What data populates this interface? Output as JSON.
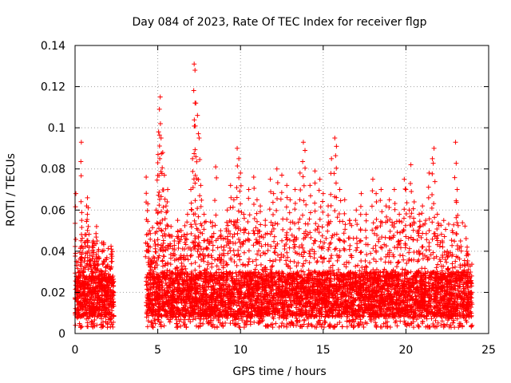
{
  "chart_data": {
    "type": "scatter",
    "title": "Day 084 of 2023, Rate Of TEC Index for receiver flgp",
    "xlabel": "GPS time / hours",
    "ylabel": "ROTI / TECUs",
    "xlim": [
      0,
      25
    ],
    "ylim": [
      0,
      0.14
    ],
    "x_ticks": [
      0,
      5,
      10,
      15,
      20,
      25
    ],
    "x_tick_labels": [
      "0",
      "5",
      "10",
      "15",
      "20",
      "25"
    ],
    "y_ticks": [
      0,
      0.02,
      0.04,
      0.06,
      0.08,
      0.1,
      0.12,
      0.14
    ],
    "y_tick_labels": [
      "0",
      "0.02",
      "0.04",
      "0.06",
      "0.08",
      "0.1",
      "0.12",
      "0.14"
    ],
    "grid": true,
    "marker": "+",
    "series": [
      {
        "name": "ROTI",
        "color": "#ff0000",
        "points": [
          [
            0.05,
            0.068
          ],
          [
            0.15,
            0.012
          ],
          [
            0.2,
            0.025
          ],
          [
            0.3,
            0.018
          ],
          [
            0.35,
            0.042
          ],
          [
            0.4,
            0.055
          ],
          [
            0.38,
            0.093
          ],
          [
            0.5,
            0.03
          ],
          [
            0.6,
            0.048
          ],
          [
            0.7,
            0.062
          ],
          [
            0.75,
            0.066
          ],
          [
            0.8,
            0.052
          ],
          [
            0.9,
            0.038
          ],
          [
            1.0,
            0.028
          ],
          [
            1.1,
            0.045
          ],
          [
            1.2,
            0.035
          ],
          [
            1.3,
            0.052
          ],
          [
            1.4,
            0.04
          ],
          [
            1.5,
            0.022
          ],
          [
            1.6,
            0.03
          ],
          [
            1.7,
            0.044
          ],
          [
            1.8,
            0.026
          ],
          [
            1.9,
            0.036
          ],
          [
            2.0,
            0.018
          ],
          [
            2.1,
            0.025
          ],
          [
            2.2,
            0.041
          ],
          [
            2.3,
            0.015
          ],
          [
            4.3,
            0.076
          ],
          [
            4.4,
            0.063
          ],
          [
            4.5,
            0.05
          ],
          [
            4.6,
            0.035
          ],
          [
            4.8,
            0.045
          ],
          [
            4.9,
            0.06
          ],
          [
            5.0,
            0.083
          ],
          [
            5.05,
            0.098
          ],
          [
            5.1,
            0.109
          ],
          [
            5.15,
            0.115
          ],
          [
            5.2,
            0.095
          ],
          [
            5.3,
            0.088
          ],
          [
            5.4,
            0.077
          ],
          [
            5.5,
            0.062
          ],
          [
            5.6,
            0.07
          ],
          [
            5.8,
            0.052
          ],
          [
            6.0,
            0.045
          ],
          [
            6.2,
            0.055
          ],
          [
            6.4,
            0.038
          ],
          [
            6.6,
            0.048
          ],
          [
            6.8,
            0.058
          ],
          [
            7.0,
            0.07
          ],
          [
            7.1,
            0.085
          ],
          [
            7.2,
            0.131
          ],
          [
            7.25,
            0.128
          ],
          [
            7.3,
            0.112
          ],
          [
            7.4,
            0.106
          ],
          [
            7.5,
            0.095
          ],
          [
            7.6,
            0.072
          ],
          [
            7.8,
            0.058
          ],
          [
            8.0,
            0.045
          ],
          [
            8.3,
            0.052
          ],
          [
            8.5,
            0.081
          ],
          [
            8.8,
            0.05
          ],
          [
            9.0,
            0.042
          ],
          [
            9.2,
            0.06
          ],
          [
            9.4,
            0.072
          ],
          [
            9.6,
            0.065
          ],
          [
            9.8,
            0.09
          ],
          [
            9.9,
            0.085
          ],
          [
            10.0,
            0.078
          ],
          [
            10.2,
            0.058
          ],
          [
            10.5,
            0.07
          ],
          [
            10.8,
            0.076
          ],
          [
            11.0,
            0.065
          ],
          [
            11.2,
            0.062
          ],
          [
            11.5,
            0.055
          ],
          [
            11.8,
            0.075
          ],
          [
            12.0,
            0.068
          ],
          [
            12.2,
            0.08
          ],
          [
            12.5,
            0.077
          ],
          [
            12.8,
            0.072
          ],
          [
            13.0,
            0.065
          ],
          [
            13.3,
            0.07
          ],
          [
            13.6,
            0.078
          ],
          [
            13.8,
            0.093
          ],
          [
            13.9,
            0.089
          ],
          [
            14.2,
            0.072
          ],
          [
            14.5,
            0.079
          ],
          [
            14.8,
            0.075
          ],
          [
            15.0,
            0.068
          ],
          [
            15.3,
            0.062
          ],
          [
            15.5,
            0.085
          ],
          [
            15.7,
            0.095
          ],
          [
            15.8,
            0.091
          ],
          [
            16.0,
            0.07
          ],
          [
            16.3,
            0.065
          ],
          [
            16.6,
            0.055
          ],
          [
            17.0,
            0.06
          ],
          [
            17.3,
            0.068
          ],
          [
            17.6,
            0.058
          ],
          [
            18.0,
            0.075
          ],
          [
            18.2,
            0.068
          ],
          [
            18.5,
            0.07
          ],
          [
            18.8,
            0.062
          ],
          [
            19.0,
            0.065
          ],
          [
            19.3,
            0.07
          ],
          [
            19.6,
            0.058
          ],
          [
            19.9,
            0.075
          ],
          [
            20.0,
            0.07
          ],
          [
            20.2,
            0.06
          ],
          [
            20.3,
            0.082
          ],
          [
            20.5,
            0.064
          ],
          [
            20.8,
            0.058
          ],
          [
            21.0,
            0.062
          ],
          [
            21.2,
            0.055
          ],
          [
            21.4,
            0.078
          ],
          [
            21.6,
            0.085
          ],
          [
            21.7,
            0.09
          ],
          [
            21.9,
            0.058
          ],
          [
            22.2,
            0.045
          ],
          [
            22.5,
            0.04
          ],
          [
            22.8,
            0.05
          ],
          [
            23.0,
            0.093
          ],
          [
            23.1,
            0.07
          ],
          [
            23.3,
            0.045
          ],
          [
            23.5,
            0.03
          ],
          [
            23.7,
            0.042
          ],
          [
            23.9,
            0.025
          ]
        ],
        "dense_band": {
          "segments": [
            {
              "x_range": [
                0.0,
                2.35
              ],
              "base_y": [
                0.008,
                0.028
              ],
              "spread_y": [
                0.003,
                0.045
              ]
            },
            {
              "x_range": [
                4.3,
                24.0
              ],
              "base_y": [
                0.008,
                0.03
              ],
              "spread_y": [
                0.003,
                0.055
              ]
            }
          ]
        }
      }
    ]
  }
}
